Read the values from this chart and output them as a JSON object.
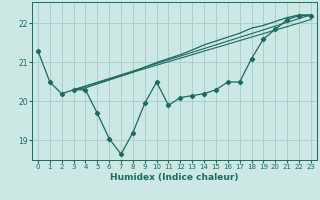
{
  "xlabel": "Humidex (Indice chaleur)",
  "background_color": "#cce8e5",
  "grid_color": "#aacfcc",
  "line_color": "#1a6b60",
  "xlim": [
    -0.5,
    23.5
  ],
  "ylim": [
    18.5,
    22.55
  ],
  "yticks": [
    19,
    20,
    21,
    22
  ],
  "xticks": [
    0,
    1,
    2,
    3,
    4,
    5,
    6,
    7,
    8,
    9,
    10,
    11,
    12,
    13,
    14,
    15,
    16,
    17,
    18,
    19,
    20,
    21,
    22,
    23
  ],
  "main_x": [
    0,
    1,
    2,
    3,
    4,
    5,
    6,
    7,
    8,
    9,
    10,
    11,
    12,
    13,
    14,
    15,
    16,
    17,
    18,
    19,
    20,
    21,
    22,
    23
  ],
  "main_y": [
    21.3,
    20.5,
    20.2,
    20.3,
    20.3,
    19.7,
    19.05,
    18.65,
    19.2,
    19.95,
    20.5,
    19.9,
    20.1,
    20.15,
    20.2,
    20.3,
    20.5,
    20.5,
    21.1,
    21.6,
    21.85,
    22.1,
    22.2,
    22.2
  ],
  "smooth_x": [
    3,
    4,
    5,
    6,
    7,
    8,
    9,
    10,
    11,
    12,
    13,
    14,
    15,
    16,
    17,
    18,
    19,
    20,
    21,
    22,
    23
  ],
  "smooth_y": [
    20.3,
    20.35,
    20.45,
    20.55,
    20.65,
    20.75,
    20.88,
    21.0,
    21.1,
    21.2,
    21.32,
    21.45,
    21.55,
    21.65,
    21.75,
    21.88,
    21.95,
    22.05,
    22.15,
    22.22,
    22.22
  ],
  "line1_x": [
    3,
    23
  ],
  "line1_y": [
    20.3,
    22.22
  ],
  "line2_x": [
    3,
    23
  ],
  "line2_y": [
    20.3,
    22.1
  ]
}
